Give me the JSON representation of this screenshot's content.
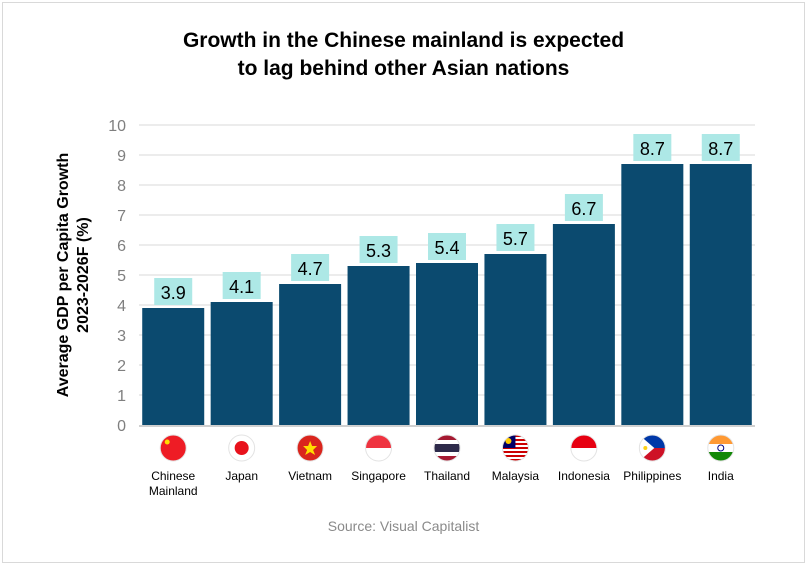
{
  "chart_data": {
    "type": "bar",
    "title": "Growth in the Chinese mainland is expected to lag behind other Asian nations",
    "title_lines": [
      "Growth in the Chinese mainland is expected",
      "to lag behind other Asian nations"
    ],
    "ylabel_lines": [
      "Average GDP per Capita Growth",
      "2023-2026F (%)"
    ],
    "xlabel": "",
    "categories": [
      "Chinese Mainland",
      "Japan",
      "Vietnam",
      "Singapore",
      "Thailand",
      "Malaysia",
      "Indonesia",
      "Philippines",
      "India"
    ],
    "category_lines": [
      [
        "Chinese",
        "Mainland"
      ],
      [
        "Japan"
      ],
      [
        "Vietnam"
      ],
      [
        "Singapore"
      ],
      [
        "Thailand"
      ],
      [
        "Malaysia"
      ],
      [
        "Indonesia"
      ],
      [
        "Philippines"
      ],
      [
        "India"
      ]
    ],
    "flag_icons": [
      "china-flag-icon",
      "japan-flag-icon",
      "vietnam-flag-icon",
      "singapore-flag-icon",
      "thailand-flag-icon",
      "malaysia-flag-icon",
      "indonesia-flag-icon",
      "philippines-flag-icon",
      "india-flag-icon"
    ],
    "values": [
      3.9,
      4.1,
      4.7,
      5.3,
      5.4,
      5.7,
      6.7,
      8.7,
      8.7
    ],
    "ylim": [
      0,
      10
    ],
    "yticks": [
      0,
      1,
      2,
      3,
      4,
      5,
      6,
      7,
      8,
      9,
      10
    ],
    "grid": true,
    "legend": "none",
    "colors": {
      "bar": "#0b4a6f",
      "label_bg": "#ade8e6",
      "grid": "#d9d9d9"
    }
  },
  "source": "Source: Visual Capitalist"
}
